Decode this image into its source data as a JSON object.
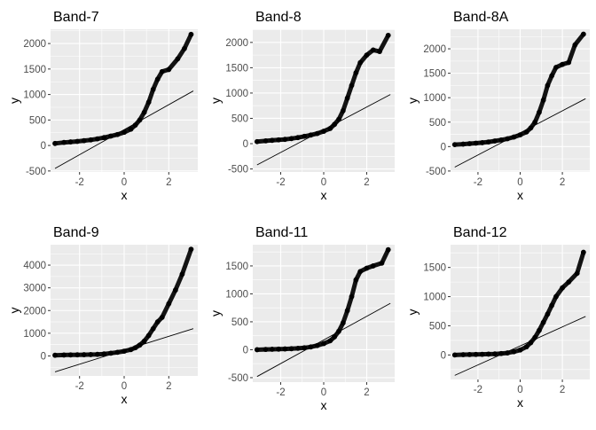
{
  "chart_data": [
    {
      "type": "scatter",
      "title": "Band-7",
      "xlabel": "x",
      "ylabel": "y",
      "xlim": [
        -3.3,
        3.3
      ],
      "ylim": [
        -520,
        2280
      ],
      "xticks": [
        -2,
        0,
        2
      ],
      "yticks": [
        -500,
        0,
        500,
        1000,
        1500,
        2000
      ],
      "grid": true,
      "legend": "none",
      "colors": {
        "points": "#000000",
        "line": "#000000",
        "panel": "#ebebeb",
        "grid": "#ffffff"
      },
      "qq_points": [
        [
          -3.1,
          40
        ],
        [
          -2.7,
          60
        ],
        [
          -2.4,
          70
        ],
        [
          -2.1,
          80
        ],
        [
          -1.8,
          95
        ],
        [
          -1.5,
          110
        ],
        [
          -1.2,
          130
        ],
        [
          -0.9,
          155
        ],
        [
          -0.6,
          185
        ],
        [
          -0.3,
          215
        ],
        [
          0,
          260
        ],
        [
          0.3,
          320
        ],
        [
          0.5,
          400
        ],
        [
          0.7,
          500
        ],
        [
          0.9,
          650
        ],
        [
          1.1,
          850
        ],
        [
          1.3,
          1100
        ],
        [
          1.5,
          1300
        ],
        [
          1.7,
          1450
        ],
        [
          2.0,
          1490
        ],
        [
          2.4,
          1700
        ],
        [
          2.7,
          1900
        ],
        [
          3.0,
          2180
        ]
      ],
      "reference_line": [
        [
          -3.1,
          -450
        ],
        [
          3.1,
          1070
        ]
      ]
    },
    {
      "type": "scatter",
      "title": "Band-8",
      "xlabel": "x",
      "ylabel": "y",
      "xlim": [
        -3.3,
        3.3
      ],
      "ylim": [
        -560,
        2260
      ],
      "xticks": [
        -2,
        0,
        2
      ],
      "yticks": [
        -500,
        0,
        500,
        1000,
        1500,
        2000
      ],
      "grid": true,
      "legend": "none",
      "colors": {
        "points": "#000000",
        "line": "#000000",
        "panel": "#ebebeb",
        "grid": "#ffffff"
      },
      "qq_points": [
        [
          -3.1,
          40
        ],
        [
          -2.7,
          55
        ],
        [
          -2.4,
          65
        ],
        [
          -2.1,
          75
        ],
        [
          -1.8,
          85
        ],
        [
          -1.5,
          100
        ],
        [
          -1.2,
          120
        ],
        [
          -0.9,
          145
        ],
        [
          -0.6,
          170
        ],
        [
          -0.3,
          200
        ],
        [
          0,
          245
        ],
        [
          0.3,
          300
        ],
        [
          0.5,
          380
        ],
        [
          0.7,
          480
        ],
        [
          0.9,
          650
        ],
        [
          1.1,
          900
        ],
        [
          1.3,
          1150
        ],
        [
          1.5,
          1400
        ],
        [
          1.7,
          1600
        ],
        [
          2.0,
          1750
        ],
        [
          2.3,
          1850
        ],
        [
          2.6,
          1820
        ],
        [
          3.0,
          2140
        ]
      ],
      "reference_line": [
        [
          -3.1,
          -420
        ],
        [
          3.1,
          970
        ]
      ]
    },
    {
      "type": "scatter",
      "title": "Band-8A",
      "xlabel": "x",
      "ylabel": "y",
      "xlim": [
        -3.3,
        3.3
      ],
      "ylim": [
        -520,
        2400
      ],
      "xticks": [
        -2,
        0,
        2
      ],
      "yticks": [
        -500,
        0,
        500,
        1000,
        1500,
        2000
      ],
      "grid": true,
      "legend": "none",
      "colors": {
        "points": "#000000",
        "line": "#000000",
        "panel": "#ebebeb",
        "grid": "#ffffff"
      },
      "qq_points": [
        [
          -3.1,
          40
        ],
        [
          -2.7,
          50
        ],
        [
          -2.4,
          60
        ],
        [
          -2.1,
          70
        ],
        [
          -1.8,
          80
        ],
        [
          -1.5,
          95
        ],
        [
          -1.2,
          115
        ],
        [
          -0.9,
          135
        ],
        [
          -0.6,
          160
        ],
        [
          -0.3,
          195
        ],
        [
          0,
          240
        ],
        [
          0.3,
          300
        ],
        [
          0.5,
          380
        ],
        [
          0.7,
          500
        ],
        [
          0.9,
          700
        ],
        [
          1.1,
          950
        ],
        [
          1.3,
          1250
        ],
        [
          1.5,
          1450
        ],
        [
          1.7,
          1620
        ],
        [
          2.0,
          1680
        ],
        [
          2.3,
          1720
        ],
        [
          2.6,
          2080
        ],
        [
          3.0,
          2300
        ]
      ],
      "reference_line": [
        [
          -3.1,
          -420
        ],
        [
          3.1,
          980
        ]
      ]
    },
    {
      "type": "scatter",
      "title": "Band-9",
      "xlabel": "x",
      "ylabel": "y",
      "xlim": [
        -3.3,
        3.3
      ],
      "ylim": [
        -880,
        4900
      ],
      "xticks": [
        -2,
        0,
        2
      ],
      "yticks": [
        0,
        1000,
        2000,
        3000,
        4000
      ],
      "grid": true,
      "legend": "none",
      "colors": {
        "points": "#000000",
        "line": "#000000",
        "panel": "#ebebeb",
        "grid": "#ffffff"
      },
      "qq_points": [
        [
          -3.1,
          30
        ],
        [
          -2.7,
          40
        ],
        [
          -2.4,
          45
        ],
        [
          -2.1,
          50
        ],
        [
          -1.8,
          55
        ],
        [
          -1.5,
          60
        ],
        [
          -1.2,
          70
        ],
        [
          -0.9,
          90
        ],
        [
          -0.6,
          120
        ],
        [
          -0.3,
          160
        ],
        [
          0,
          210
        ],
        [
          0.3,
          280
        ],
        [
          0.5,
          360
        ],
        [
          0.7,
          480
        ],
        [
          0.9,
          650
        ],
        [
          1.1,
          900
        ],
        [
          1.3,
          1200
        ],
        [
          1.5,
          1500
        ],
        [
          1.7,
          1700
        ],
        [
          2.0,
          2300
        ],
        [
          2.3,
          2900
        ],
        [
          2.6,
          3600
        ],
        [
          3.0,
          4700
        ]
      ],
      "reference_line": [
        [
          -3.1,
          -700
        ],
        [
          3.1,
          1200
        ]
      ]
    },
    {
      "type": "scatter",
      "title": "Band-11",
      "xlabel": "x",
      "ylabel": "y",
      "xlim": [
        -3.3,
        3.3
      ],
      "ylim": [
        -580,
        1880
      ],
      "xticks": [
        -2,
        0,
        2
      ],
      "yticks": [
        -500,
        0,
        500,
        1000,
        1500
      ],
      "grid": true,
      "legend": "none",
      "colors": {
        "points": "#000000",
        "line": "#000000",
        "panel": "#ebebeb",
        "grid": "#ffffff"
      },
      "qq_points": [
        [
          -3.1,
          0
        ],
        [
          -2.7,
          5
        ],
        [
          -2.4,
          8
        ],
        [
          -2.1,
          10
        ],
        [
          -1.8,
          14
        ],
        [
          -1.5,
          18
        ],
        [
          -1.2,
          25
        ],
        [
          -0.9,
          35
        ],
        [
          -0.6,
          50
        ],
        [
          -0.3,
          75
        ],
        [
          0,
          110
        ],
        [
          0.3,
          160
        ],
        [
          0.5,
          230
        ],
        [
          0.7,
          330
        ],
        [
          0.9,
          480
        ],
        [
          1.1,
          700
        ],
        [
          1.3,
          950
        ],
        [
          1.5,
          1250
        ],
        [
          1.7,
          1400
        ],
        [
          2.0,
          1460
        ],
        [
          2.3,
          1500
        ],
        [
          2.7,
          1550
        ],
        [
          3.0,
          1790
        ]
      ],
      "reference_line": [
        [
          -3.1,
          -480
        ],
        [
          3.1,
          830
        ]
      ]
    },
    {
      "type": "scatter",
      "title": "Band-12",
      "xlabel": "x",
      "ylabel": "y",
      "xlim": [
        -3.3,
        3.3
      ],
      "ylim": [
        -420,
        1890
      ],
      "xticks": [
        -2,
        0,
        2
      ],
      "yticks": [
        0,
        500,
        1000,
        1500
      ],
      "grid": true,
      "legend": "none",
      "colors": {
        "points": "#000000",
        "line": "#000000",
        "panel": "#ebebeb",
        "grid": "#ffffff"
      },
      "qq_points": [
        [
          -3.1,
          0
        ],
        [
          -2.7,
          5
        ],
        [
          -2.4,
          7
        ],
        [
          -2.1,
          9
        ],
        [
          -1.8,
          11
        ],
        [
          -1.5,
          14
        ],
        [
          -1.2,
          18
        ],
        [
          -0.9,
          25
        ],
        [
          -0.6,
          35
        ],
        [
          -0.3,
          55
        ],
        [
          0,
          85
        ],
        [
          0.3,
          140
        ],
        [
          0.5,
          210
        ],
        [
          0.7,
          300
        ],
        [
          0.9,
          420
        ],
        [
          1.1,
          560
        ],
        [
          1.3,
          700
        ],
        [
          1.5,
          850
        ],
        [
          1.7,
          1000
        ],
        [
          2.0,
          1150
        ],
        [
          2.3,
          1250
        ],
        [
          2.7,
          1400
        ],
        [
          3.0,
          1760
        ]
      ],
      "reference_line": [
        [
          -3.1,
          -350
        ],
        [
          3.1,
          660
        ]
      ]
    }
  ]
}
